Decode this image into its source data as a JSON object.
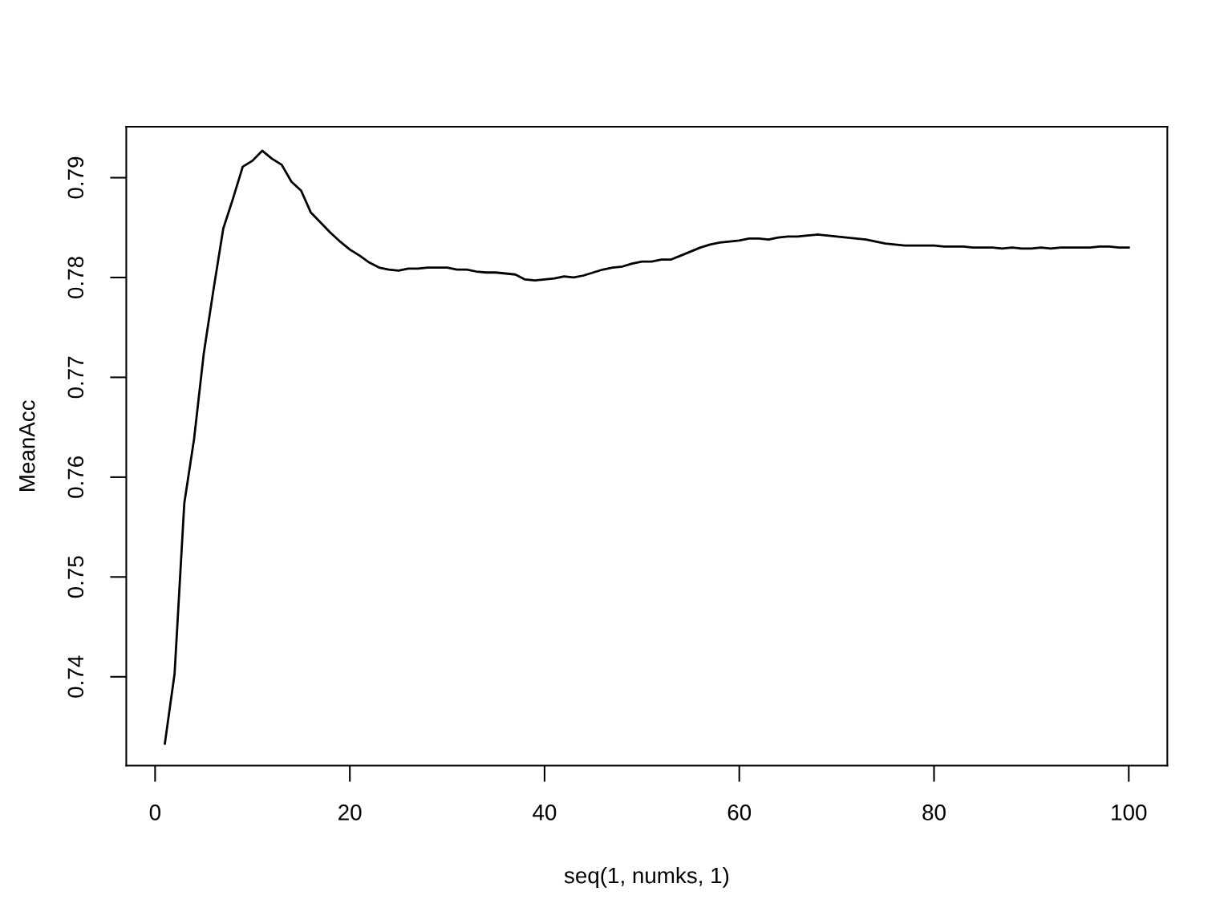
{
  "chart_data": {
    "type": "line",
    "xlabel": "seq(1, numks, 1)",
    "ylabel": "MeanAcc",
    "x": [
      1,
      2,
      3,
      4,
      5,
      6,
      7,
      8,
      9,
      10,
      11,
      12,
      13,
      14,
      15,
      16,
      17,
      18,
      19,
      20,
      21,
      22,
      23,
      24,
      25,
      26,
      27,
      28,
      29,
      30,
      31,
      32,
      33,
      34,
      35,
      36,
      37,
      38,
      39,
      40,
      41,
      42,
      43,
      44,
      45,
      46,
      47,
      48,
      49,
      50,
      51,
      52,
      53,
      54,
      55,
      56,
      57,
      58,
      59,
      60,
      61,
      62,
      63,
      64,
      65,
      66,
      67,
      68,
      69,
      70,
      71,
      72,
      73,
      74,
      75,
      76,
      77,
      78,
      79,
      80,
      81,
      82,
      83,
      84,
      85,
      86,
      87,
      88,
      89,
      90,
      91,
      92,
      93,
      94,
      95,
      96,
      97,
      98,
      99,
      100
    ],
    "series": [
      {
        "color": "#000000",
        "line_style": "solid",
        "values": [
          0.7333,
          0.7403,
          0.7574,
          0.7638,
          0.7724,
          0.7788,
          0.7849,
          0.7879,
          0.7911,
          0.7917,
          0.7927,
          0.7919,
          0.7913,
          0.7896,
          0.7887,
          0.7865,
          0.7855,
          0.7845,
          0.7836,
          0.7828,
          0.7822,
          0.7815,
          0.781,
          0.7808,
          0.7807,
          0.7809,
          0.7809,
          0.781,
          0.781,
          0.781,
          0.7808,
          0.7808,
          0.7806,
          0.7805,
          0.7805,
          0.7804,
          0.7803,
          0.7798,
          0.7797,
          0.7798,
          0.7799,
          0.7801,
          0.78,
          0.7802,
          0.7805,
          0.7808,
          0.781,
          0.7811,
          0.7814,
          0.7816,
          0.7816,
          0.7818,
          0.7818,
          0.7822,
          0.7826,
          0.783,
          0.7833,
          0.7835,
          0.7836,
          0.7837,
          0.7839,
          0.7839,
          0.7838,
          0.784,
          0.7841,
          0.7841,
          0.7842,
          0.7843,
          0.7842,
          0.7841,
          0.784,
          0.7839,
          0.7838,
          0.7836,
          0.7834,
          0.7833,
          0.7832,
          0.7832,
          0.7832,
          0.7832,
          0.7831,
          0.7831,
          0.7831,
          0.783,
          0.783,
          0.783,
          0.7829,
          0.783,
          0.7829,
          0.7829,
          0.783,
          0.7829,
          0.783,
          0.783,
          0.783,
          0.783,
          0.7831,
          0.7831,
          0.783,
          0.783
        ]
      }
    ],
    "xlim": [
      -2.96,
      103.96
    ],
    "ylim": [
      0.7311,
      0.7951
    ],
    "xticks": [
      0,
      20,
      40,
      60,
      80,
      100
    ],
    "yticks": [
      0.74,
      0.75,
      0.76,
      0.77,
      0.78,
      0.79
    ]
  }
}
